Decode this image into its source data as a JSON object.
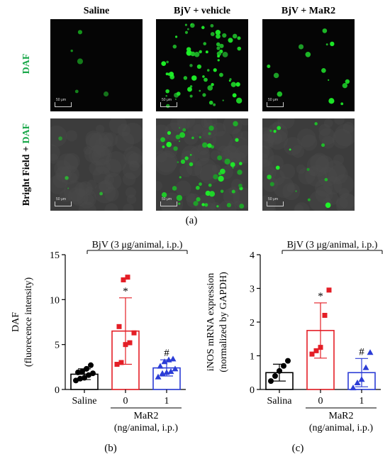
{
  "figure": {
    "columns": [
      "Saline",
      "BjV + vehicle",
      "BjV + MaR2"
    ],
    "row_label_daf": "DAF",
    "row_label_bf_prefix": "Bright Field + ",
    "row_label_bf_suffix": "DAF",
    "scale_bar": "50 μm",
    "caption_a": "(a)",
    "caption_b": "(b)",
    "caption_c": "(c)",
    "colors": {
      "daf_green": "#1aa84a",
      "saline": "#000000",
      "vehicle": "#e41e26",
      "mar2": "#2b3cd6"
    }
  },
  "chart_data": [
    {
      "type": "bar",
      "panel": "b",
      "ylabel": [
        "DAF",
        "(fluorecence intensity)"
      ],
      "ylim": [
        0,
        15
      ],
      "yticks": [
        0,
        5,
        10,
        15
      ],
      "bracket_label": "BjV (3 μg/animal, i.p.)",
      "group_label": "MaR2",
      "group_sublabel": "(ng/animal, i.p.)",
      "categories": [
        "Saline",
        "0",
        "1"
      ],
      "values": [
        1.7,
        6.5,
        2.4
      ],
      "errors": [
        0.6,
        3.7,
        0.9
      ],
      "annotations": [
        "",
        "*",
        "#"
      ],
      "points": [
        [
          1.0,
          1.2,
          1.3,
          1.6,
          1.8,
          1.9,
          2.0,
          2.3,
          2.7
        ],
        [
          2.8,
          3.0,
          5.0,
          5.2,
          6.3,
          7.0,
          12.2,
          12.5
        ],
        [
          1.4,
          1.8,
          1.9,
          2.0,
          2.3,
          2.6,
          3.1,
          3.3,
          3.4
        ]
      ]
    },
    {
      "type": "bar",
      "panel": "c",
      "ylabel": [
        "iNOS mRNA expression",
        "(normalized by GAPDH)"
      ],
      "ylim": [
        0,
        4
      ],
      "yticks": [
        0,
        1,
        2,
        3,
        4
      ],
      "bracket_label": "BjV (3 μg/animal, i.p.)",
      "group_label": "MaR2",
      "group_sublabel": "(ng/animal, i.p.)",
      "categories": [
        "Salina",
        "0",
        "1"
      ],
      "values": [
        0.5,
        1.75,
        0.5
      ],
      "errors": [
        0.25,
        0.82,
        0.42
      ],
      "annotations": [
        "",
        "*",
        "#"
      ],
      "points": [
        [
          0.25,
          0.4,
          0.55,
          0.7,
          0.85
        ],
        [
          1.05,
          1.15,
          1.25,
          2.2,
          2.95
        ],
        [
          0.05,
          0.2,
          0.3,
          0.65,
          1.1
        ]
      ]
    }
  ]
}
